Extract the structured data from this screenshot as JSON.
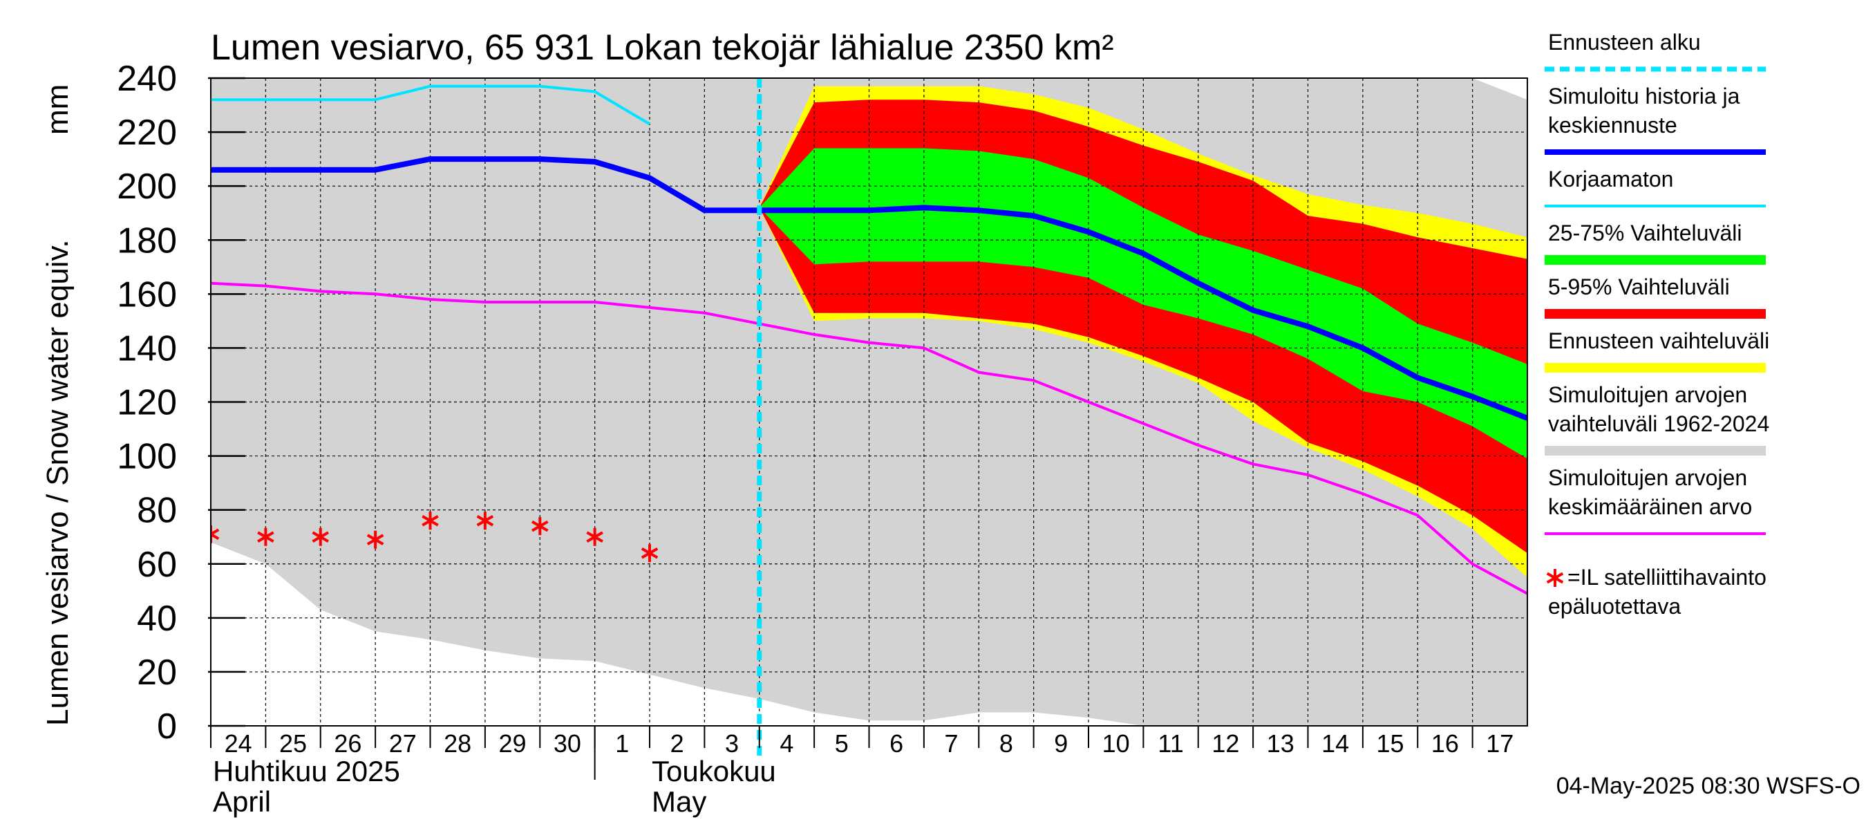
{
  "chart_data": {
    "type": "area",
    "title": "Lumen vesiarvo, 65 931 Lokan tekojär lähialue 2350 km²",
    "ylabel": "Lumen vesiarvo / Snow water equiv.",
    "yunit": "mm",
    "ylim": [
      0,
      240
    ],
    "yticks": [
      0,
      20,
      40,
      60,
      80,
      100,
      120,
      140,
      160,
      180,
      200,
      220,
      240
    ],
    "x_start": "2025-04-24",
    "x_end": "2025-05-18",
    "day_labels": [
      {
        "date": "2025-04-24",
        "label": "24"
      },
      {
        "date": "2025-04-25",
        "label": "25"
      },
      {
        "date": "2025-04-26",
        "label": "26"
      },
      {
        "date": "2025-04-27",
        "label": "27"
      },
      {
        "date": "2025-04-28",
        "label": "28"
      },
      {
        "date": "2025-04-29",
        "label": "29"
      },
      {
        "date": "2025-04-30",
        "label": "30"
      },
      {
        "date": "2025-05-01",
        "label": "1"
      },
      {
        "date": "2025-05-02",
        "label": "2"
      },
      {
        "date": "2025-05-03",
        "label": "3"
      },
      {
        "date": "2025-05-04",
        "label": "4"
      },
      {
        "date": "2025-05-05",
        "label": "5"
      },
      {
        "date": "2025-05-06",
        "label": "6"
      },
      {
        "date": "2025-05-07",
        "label": "7"
      },
      {
        "date": "2025-05-08",
        "label": "8"
      },
      {
        "date": "2025-05-09",
        "label": "9"
      },
      {
        "date": "2025-05-10",
        "label": "10"
      },
      {
        "date": "2025-05-11",
        "label": "11"
      },
      {
        "date": "2025-05-12",
        "label": "12"
      },
      {
        "date": "2025-05-13",
        "label": "13"
      },
      {
        "date": "2025-05-14",
        "label": "14"
      },
      {
        "date": "2025-05-15",
        "label": "15"
      },
      {
        "date": "2025-05-16",
        "label": "16"
      },
      {
        "date": "2025-05-17",
        "label": "17"
      }
    ],
    "month_labels": [
      {
        "date": "2025-04-24",
        "line1": "Huhtikuu  2025",
        "line2": "April"
      },
      {
        "date": "2025-05-02",
        "line1": "Toukokuu",
        "line2": "May"
      }
    ],
    "month_boundary": "2025-05-01",
    "forecast_start": "2025-05-04",
    "series": [
      {
        "key": "range_1962_2024",
        "kind": "band",
        "color": "#d3d3d3",
        "x": [
          "2025-04-24",
          "2025-04-25",
          "2025-04-26",
          "2025-04-27",
          "2025-04-28",
          "2025-04-29",
          "2025-04-30",
          "2025-05-01",
          "2025-05-02",
          "2025-05-03",
          "2025-05-04",
          "2025-05-05",
          "2025-05-06",
          "2025-05-07",
          "2025-05-08",
          "2025-05-09",
          "2025-05-10",
          "2025-05-11",
          "2025-05-12",
          "2025-05-13",
          "2025-05-14",
          "2025-05-15",
          "2025-05-16",
          "2025-05-17",
          "2025-05-18"
        ],
        "low": [
          68,
          60,
          43,
          35,
          32,
          28,
          25,
          24,
          19,
          14,
          10,
          5,
          2,
          2,
          5,
          5,
          3,
          0,
          0,
          0,
          0,
          0,
          0,
          0,
          0
        ],
        "high": [
          240,
          240,
          240,
          240,
          240,
          240,
          240,
          240,
          240,
          240,
          240,
          240,
          240,
          240,
          240,
          240,
          240,
          240,
          240,
          240,
          240,
          240,
          240,
          240,
          232
        ]
      },
      {
        "key": "forecast_range",
        "kind": "band",
        "color": "#ffff00",
        "x": [
          "2025-05-04",
          "2025-05-05",
          "2025-05-06",
          "2025-05-07",
          "2025-05-08",
          "2025-05-09",
          "2025-05-10",
          "2025-05-11",
          "2025-05-12",
          "2025-05-13",
          "2025-05-14",
          "2025-05-15",
          "2025-05-16",
          "2025-05-17",
          "2025-05-18"
        ],
        "low": [
          192,
          150,
          151,
          151,
          150,
          147,
          142,
          135,
          127,
          113,
          103,
          95,
          85,
          73,
          55
        ],
        "high": [
          192,
          237,
          237,
          237,
          237,
          234,
          229,
          221,
          212,
          204,
          197,
          193,
          190,
          186,
          181
        ]
      },
      {
        "key": "range_5_95",
        "kind": "band",
        "color": "#ff0000",
        "x": [
          "2025-05-04",
          "2025-05-05",
          "2025-05-06",
          "2025-05-07",
          "2025-05-08",
          "2025-05-09",
          "2025-05-10",
          "2025-05-11",
          "2025-05-12",
          "2025-05-13",
          "2025-05-14",
          "2025-05-15",
          "2025-05-16",
          "2025-05-17",
          "2025-05-18"
        ],
        "low": [
          192,
          153,
          153,
          153,
          151,
          149,
          144,
          137,
          129,
          120,
          105,
          98,
          89,
          78,
          64
        ],
        "high": [
          192,
          231,
          232,
          232,
          231,
          228,
          222,
          215,
          209,
          202,
          189,
          186,
          181,
          177,
          173
        ]
      },
      {
        "key": "range_25_75",
        "kind": "band",
        "color": "#00ff00",
        "x": [
          "2025-05-04",
          "2025-05-05",
          "2025-05-06",
          "2025-05-07",
          "2025-05-08",
          "2025-05-09",
          "2025-05-10",
          "2025-05-11",
          "2025-05-12",
          "2025-05-13",
          "2025-05-14",
          "2025-05-15",
          "2025-05-16",
          "2025-05-17",
          "2025-05-18"
        ],
        "low": [
          192,
          171,
          172,
          172,
          172,
          170,
          166,
          156,
          151,
          145,
          136,
          124,
          120,
          111,
          99
        ],
        "high": [
          192,
          214,
          214,
          214,
          213,
          210,
          203,
          192,
          182,
          176,
          169,
          162,
          149,
          142,
          134
        ]
      },
      {
        "key": "mean_simulated",
        "kind": "line",
        "color": "#ff00ff",
        "width": 4,
        "x": [
          "2025-04-24",
          "2025-04-25",
          "2025-04-26",
          "2025-04-27",
          "2025-04-28",
          "2025-04-29",
          "2025-04-30",
          "2025-05-01",
          "2025-05-02",
          "2025-05-03",
          "2025-05-04",
          "2025-05-05",
          "2025-05-06",
          "2025-05-07",
          "2025-05-08",
          "2025-05-09",
          "2025-05-10",
          "2025-05-11",
          "2025-05-12",
          "2025-05-13",
          "2025-05-14",
          "2025-05-15",
          "2025-05-16",
          "2025-05-17",
          "2025-05-18"
        ],
        "y": [
          164,
          163,
          161,
          160,
          158,
          157,
          157,
          157,
          155,
          153,
          149,
          145,
          142,
          140,
          131,
          128,
          120,
          112,
          104,
          97,
          93,
          86,
          78,
          60,
          49
        ]
      },
      {
        "key": "uncorrected",
        "kind": "line",
        "color": "#00e5ff",
        "width": 4,
        "x": [
          "2025-04-24",
          "2025-04-25",
          "2025-04-26",
          "2025-04-27",
          "2025-04-28",
          "2025-04-29",
          "2025-04-30",
          "2025-05-01",
          "2025-05-02"
        ],
        "y": [
          232,
          232,
          232,
          232,
          237,
          237,
          237,
          235,
          223
        ]
      },
      {
        "key": "simulated_history",
        "kind": "line",
        "color": "#0000ff",
        "width": 8,
        "x": [
          "2025-04-24",
          "2025-04-25",
          "2025-04-26",
          "2025-04-27",
          "2025-04-28",
          "2025-04-29",
          "2025-04-30",
          "2025-05-01",
          "2025-05-02",
          "2025-05-03",
          "2025-05-04",
          "2025-05-05",
          "2025-05-06",
          "2025-05-07",
          "2025-05-08",
          "2025-05-09",
          "2025-05-10",
          "2025-05-11",
          "2025-05-12",
          "2025-05-13",
          "2025-05-14",
          "2025-05-15",
          "2025-05-16",
          "2025-05-17",
          "2025-05-18"
        ],
        "y": [
          206,
          206,
          206,
          206,
          210,
          210,
          210,
          209,
          203,
          191,
          191,
          191,
          191,
          192,
          191,
          189,
          183,
          175,
          164,
          154,
          148,
          140,
          129,
          122,
          114
        ]
      },
      {
        "key": "satellite",
        "kind": "points",
        "color": "#ff0000",
        "x": [
          "2025-04-24",
          "2025-04-25",
          "2025-04-26",
          "2025-04-27",
          "2025-04-28",
          "2025-04-29",
          "2025-04-30",
          "2025-05-01",
          "2025-05-02"
        ],
        "y": [
          71,
          70,
          70,
          69,
          76,
          76,
          74,
          70,
          64
        ]
      }
    ],
    "legend_position": "right",
    "legend": [
      {
        "label": "Ennusteen alku",
        "color": "#00e5ff",
        "style": "dashed",
        "width": 7
      },
      {
        "label": "Simuloitu historia ja keskiennuste",
        "color": "#0000ff",
        "style": "solid",
        "width": 8
      },
      {
        "label": "Korjaamaton",
        "color": "#00e5ff",
        "style": "solid",
        "width": 4
      },
      {
        "label": "25-75% Vaihteluväli",
        "color": "#00ff00",
        "style": "solid",
        "width": 14
      },
      {
        "label": "5-95% Vaihteluväli",
        "color": "#ff0000",
        "style": "solid",
        "width": 14
      },
      {
        "label": "Ennusteen vaihteluväli",
        "color": "#ffff00",
        "style": "solid",
        "width": 14
      },
      {
        "label": "Simuloitujen arvojen vaihteluväli 1962-2024",
        "color": "#d3d3d3",
        "style": "solid",
        "width": 14
      },
      {
        "label": "Simuloitujen arvojen keskimääräinen arvo",
        "color": "#ff00ff",
        "style": "solid",
        "width": 4
      },
      {
        "label": "=IL satelliittihavainto epäluotettava",
        "color": "#ff0000",
        "style": "star",
        "width": 0
      }
    ],
    "grid": true
  },
  "footer": "04-May-2025 08:30 WSFS-O"
}
